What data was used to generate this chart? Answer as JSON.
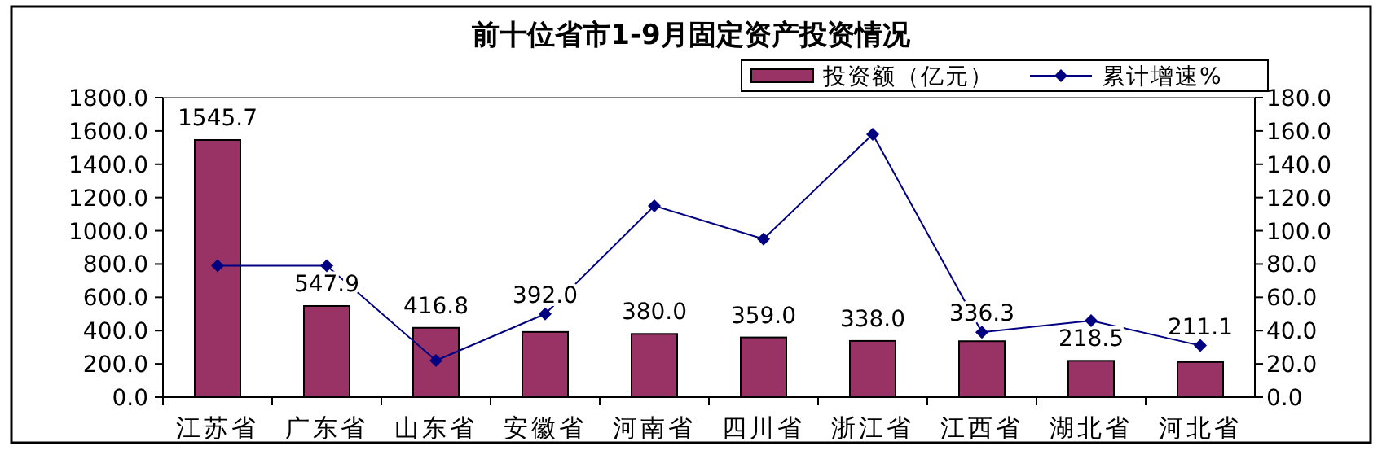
{
  "chart_data": {
    "type": "bar",
    "title": "前十位省市1-9月固定资产投资情况",
    "categories": [
      "江苏省",
      "广东省",
      "山东省",
      "安徽省",
      "河南省",
      "四川省",
      "浙江省",
      "江西省",
      "湖北省",
      "河北省"
    ],
    "series": [
      {
        "name": "投资额（亿元）",
        "color": "#993366",
        "values": [
          1545.7,
          547.9,
          416.8,
          392.0,
          380.0,
          359.0,
          338.0,
          336.3,
          218.5,
          211.1
        ],
        "value_labels": [
          "1545.7",
          "547.9",
          "416.8",
          "392.0",
          "380.0",
          "359.0",
          "338.0",
          "336.3",
          "218.5",
          "211.1"
        ]
      },
      {
        "name": "累计增速%",
        "type": "line",
        "axis": "y2",
        "color": "#000080",
        "marker": "diamond",
        "values": [
          79,
          79,
          22,
          50,
          115,
          95,
          158,
          39,
          46,
          31
        ]
      }
    ],
    "ylim": [
      0,
      1800
    ],
    "yticks": [
      {
        "value": 0,
        "label": "0.0"
      },
      {
        "value": 200,
        "label": "200.0"
      },
      {
        "value": 400,
        "label": "400.0"
      },
      {
        "value": 600,
        "label": "600.0"
      },
      {
        "value": 800,
        "label": "800.0"
      },
      {
        "value": 1000,
        "label": "1000.0"
      },
      {
        "value": 1200,
        "label": "1200.0"
      },
      {
        "value": 1400,
        "label": "1400.0"
      },
      {
        "value": 1600,
        "label": "1600.0"
      },
      {
        "value": 1800,
        "label": "1800.0"
      }
    ],
    "y2lim": [
      0,
      180
    ],
    "y2ticks": [
      {
        "value": 0,
        "label": "0.0"
      },
      {
        "value": 20,
        "label": "20.0"
      },
      {
        "value": 40,
        "label": "40.0"
      },
      {
        "value": 60,
        "label": "60.0"
      },
      {
        "value": 80,
        "label": "80.0"
      },
      {
        "value": 100,
        "label": "100.0"
      },
      {
        "value": 120,
        "label": "120.0"
      },
      {
        "value": 140,
        "label": "140.0"
      },
      {
        "value": 160,
        "label": "160.0"
      },
      {
        "value": 180,
        "label": "180.0"
      }
    ],
    "legend": "top right",
    "grid": false
  }
}
